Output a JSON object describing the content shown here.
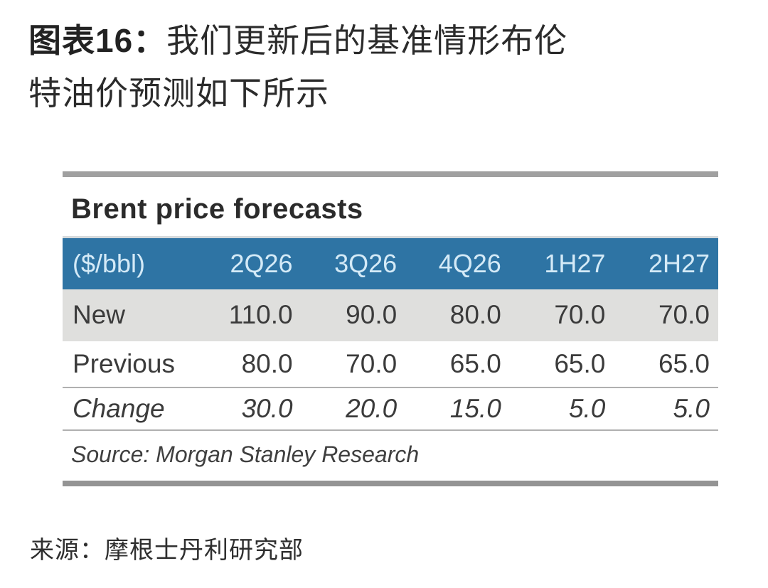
{
  "page": {
    "figure_label": "图表16：",
    "title_line1": "我们更新后的基准情形布伦",
    "title_line2": "特油价预测如下所示",
    "footer_source": "来源：摩根士丹利研究部"
  },
  "chart_data": {
    "type": "table",
    "title": "Brent price forecasts",
    "unit_label": "($/bbl)",
    "columns": [
      "2Q26",
      "3Q26",
      "4Q26",
      "1H27",
      "2H27"
    ],
    "rows": [
      {
        "label": "New",
        "style": "highlight",
        "values": [
          110.0,
          90.0,
          80.0,
          70.0,
          70.0
        ]
      },
      {
        "label": "Previous",
        "style": "lined",
        "values": [
          80.0,
          70.0,
          65.0,
          65.0,
          65.0
        ]
      },
      {
        "label": "Change",
        "style": "italic",
        "values": [
          30.0,
          20.0,
          15.0,
          5.0,
          5.0
        ]
      }
    ],
    "source": "Source: Morgan Stanley Research",
    "colors": {
      "header_bg": "#2e74a4",
      "header_text": "#d4eaf7",
      "highlight_row_bg": "#dfdfdd",
      "rule_gray": "#a0a0a0"
    }
  }
}
